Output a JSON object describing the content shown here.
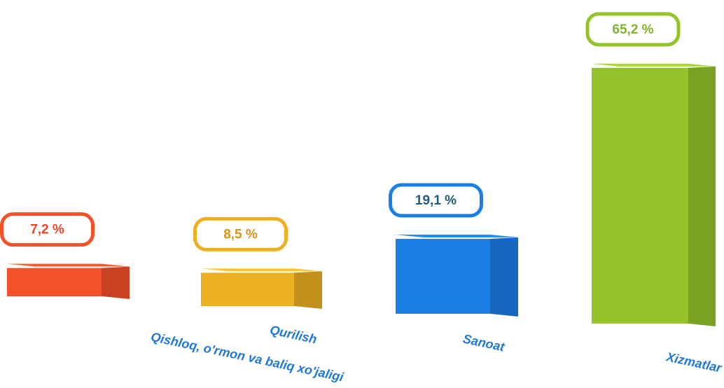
{
  "chart_data": {
    "type": "bar",
    "categories": [
      "Qishloq, o'rmon va baliq xo'jaligi",
      "Qurilish",
      "Sanoat",
      "Xizmatlar"
    ],
    "values": [
      7.2,
      8.5,
      19.1,
      65.2
    ],
    "value_labels": [
      "7,2 %",
      "8,5 %",
      "19,1 %",
      "65,2 %"
    ],
    "colors": [
      "#f4502a",
      "#eeb020",
      "#1a7fe6",
      "#94c42a"
    ]
  }
}
